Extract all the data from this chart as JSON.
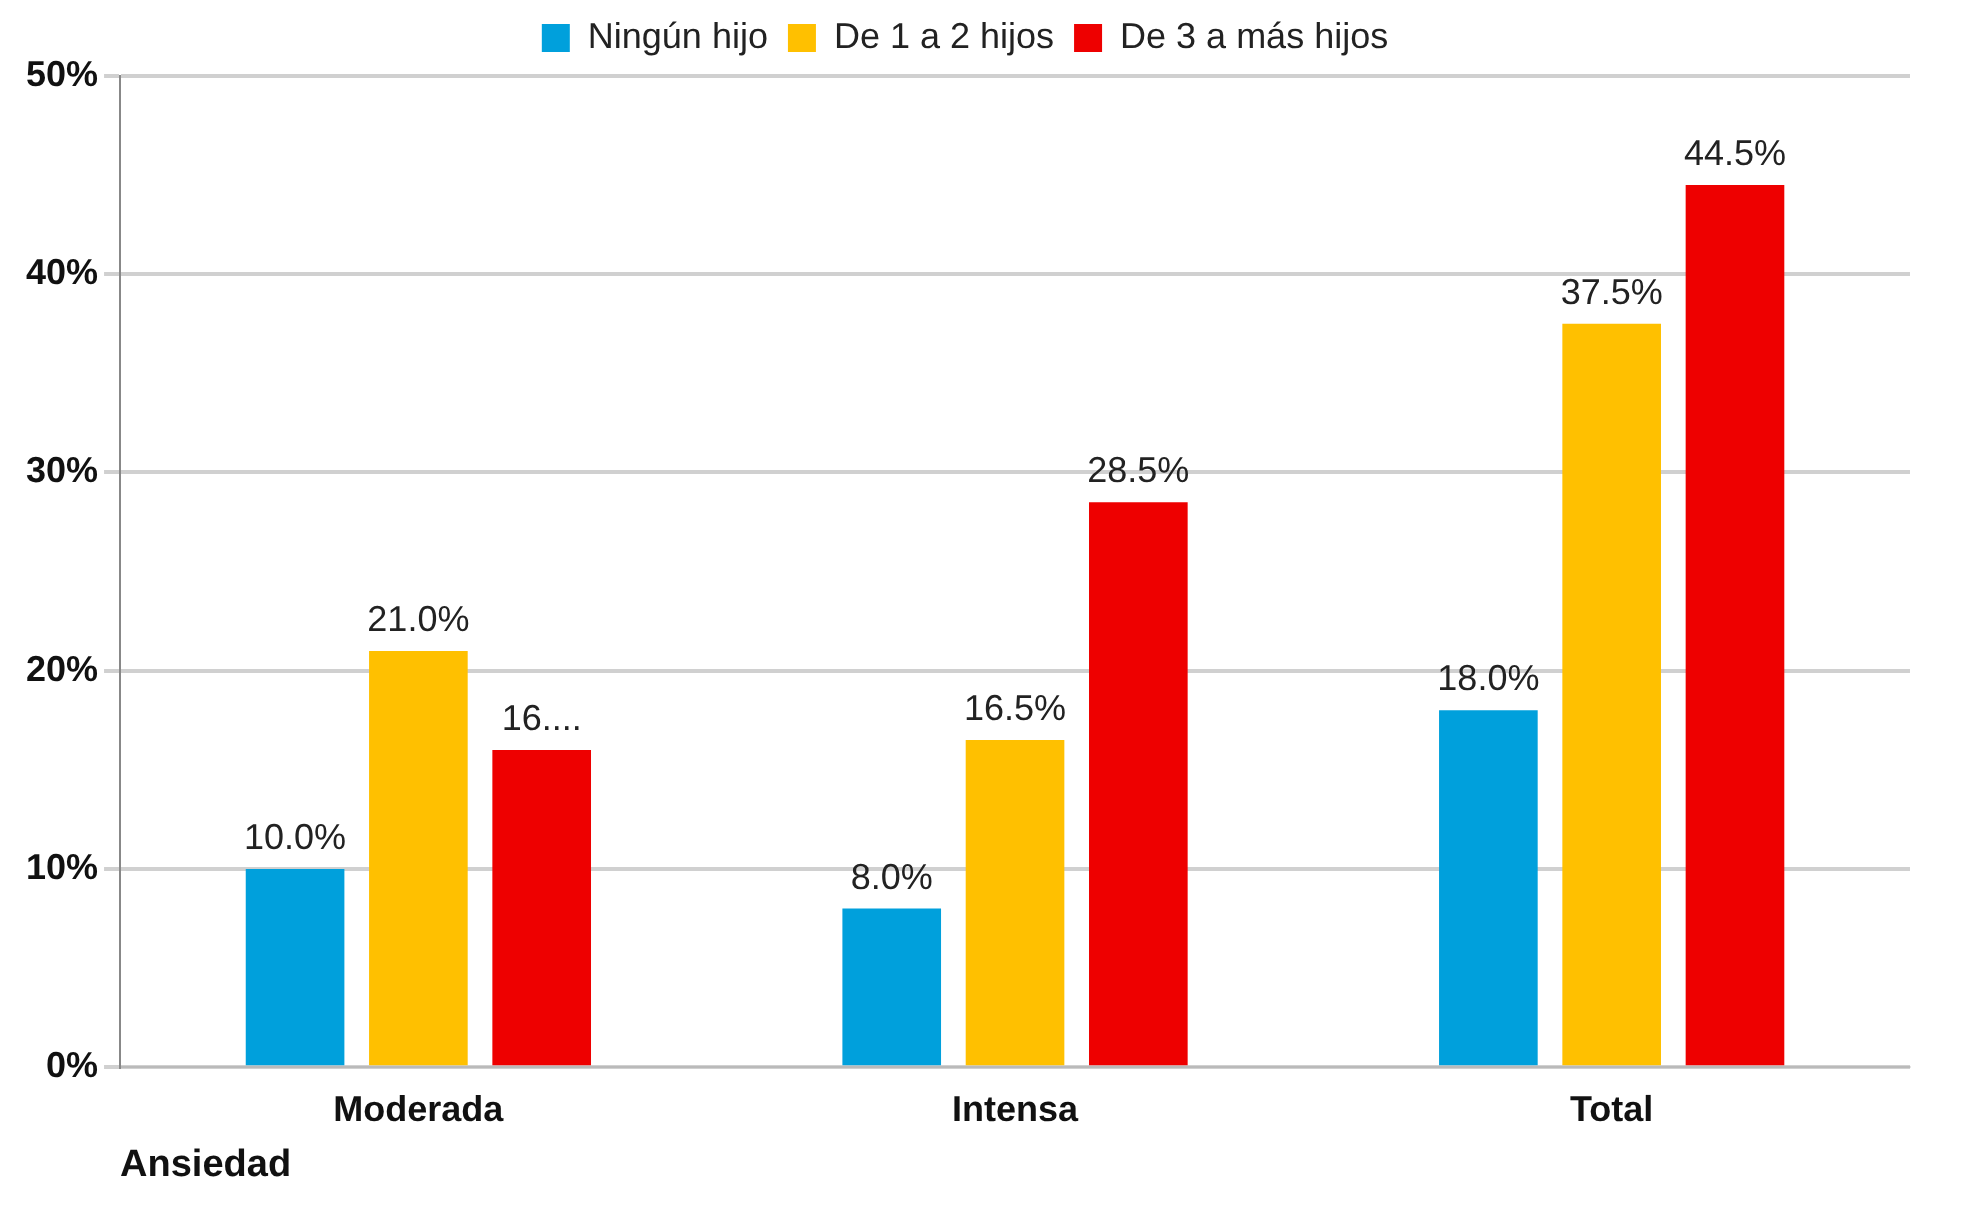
{
  "chart_data": {
    "type": "bar",
    "xlabel": "Ansiedad",
    "categories": [
      "Moderada",
      "Intensa",
      "Total"
    ],
    "series": [
      {
        "name": "Ningún hijo",
        "color": "#00a0dc",
        "values": [
          10,
          8,
          18
        ],
        "value_labels": [
          "10.0%",
          "8.0%",
          "18.0%"
        ]
      },
      {
        "name": "De 1 a 2 hijos",
        "color": "#ffc000",
        "values": [
          21,
          16.5,
          37.5
        ],
        "value_labels": [
          "21.0%",
          "16.5%",
          "37.5%"
        ]
      },
      {
        "name": "De 3 a más hijos",
        "color": "#ee0000",
        "values": [
          16,
          28.5,
          44.5
        ],
        "value_labels": [
          "16....",
          "28.5%",
          "44.5%"
        ]
      }
    ],
    "ylim": [
      0,
      50
    ],
    "yticks": [
      {
        "value": 0,
        "label": "0%"
      },
      {
        "value": 10,
        "label": "10%"
      },
      {
        "value": 20,
        "label": "20%"
      },
      {
        "value": 30,
        "label": "30%"
      },
      {
        "value": 40,
        "label": "40%"
      },
      {
        "value": 50,
        "label": "50%"
      }
    ],
    "grid": "y",
    "legend": "top"
  }
}
